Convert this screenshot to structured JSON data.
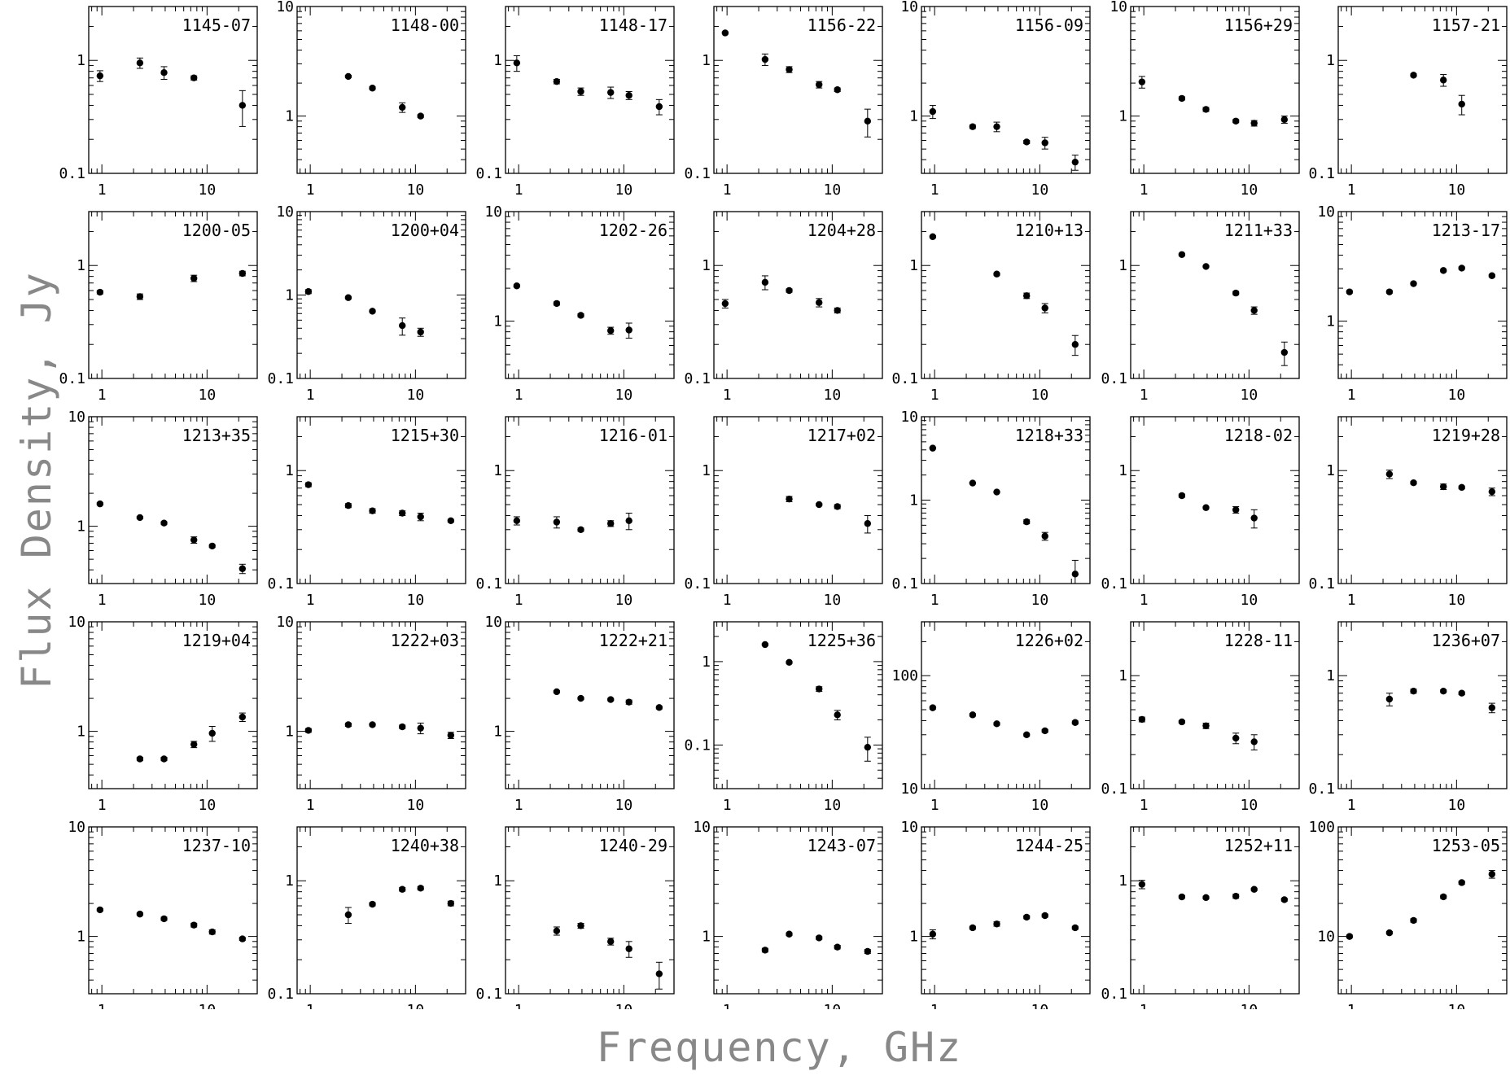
{
  "xlabel": "Frequency, GHz",
  "ylabel": "Flux Density, Jy",
  "chart_data": [
    {
      "type": "scatter",
      "title": "1145-07",
      "xlim": [
        0.75,
        30
      ],
      "ylim": [
        0.1,
        3
      ],
      "ytick_labels": [
        "0.1",
        "1"
      ],
      "xtick_labels": [
        "1",
        "10"
      ],
      "x": [
        0.96,
        2.3,
        3.9,
        7.5,
        21.7
      ],
      "y": [
        0.73,
        0.95,
        0.78,
        0.7,
        0.4
      ],
      "yerr": [
        0.08,
        0.1,
        0.1,
        0.03,
        0.14
      ]
    },
    {
      "type": "scatter",
      "title": "1148-00",
      "xlim": [
        0.75,
        30
      ],
      "ylim": [
        0.3,
        10
      ],
      "ytick_labels": [
        "1",
        "10"
      ],
      "xtick_labels": [
        "1",
        "10"
      ],
      "x": [
        2.3,
        3.9,
        7.5,
        11.2
      ],
      "y": [
        2.3,
        1.8,
        1.2,
        1.0
      ],
      "yerr": [
        0.05,
        0.05,
        0.12,
        0.03
      ]
    },
    {
      "type": "scatter",
      "title": "1148-17",
      "xlim": [
        0.75,
        30
      ],
      "ylim": [
        0.1,
        3
      ],
      "ytick_labels": [
        "0.1",
        "1"
      ],
      "xtick_labels": [
        "1",
        "10"
      ],
      "x": [
        0.96,
        2.3,
        3.9,
        7.5,
        11.2,
        21.7
      ],
      "y": [
        0.95,
        0.65,
        0.53,
        0.52,
        0.49,
        0.39
      ],
      "yerr": [
        0.15,
        0.03,
        0.04,
        0.06,
        0.04,
        0.06
      ]
    },
    {
      "type": "scatter",
      "title": "1156-22",
      "xlim": [
        0.75,
        30
      ],
      "ylim": [
        0.1,
        3
      ],
      "ytick_labels": [
        "0.1",
        "1"
      ],
      "xtick_labels": [
        "1",
        "10"
      ],
      "x": [
        0.96,
        2.3,
        3.9,
        7.5,
        11.2,
        21.7
      ],
      "y": [
        1.75,
        1.02,
        0.83,
        0.61,
        0.55,
        0.29
      ],
      "yerr": [
        0.04,
        0.12,
        0.05,
        0.04,
        0.02,
        0.08
      ]
    },
    {
      "type": "scatter",
      "title": "1156-09",
      "xlim": [
        0.75,
        30
      ],
      "ylim": [
        0.3,
        10
      ],
      "ytick_labels": [
        "1",
        "10"
      ],
      "xtick_labels": [
        "1",
        "10"
      ],
      "x": [
        0.96,
        2.3,
        3.9,
        7.5,
        11.2,
        21.7
      ],
      "y": [
        1.1,
        0.8,
        0.8,
        0.58,
        0.57,
        0.38
      ],
      "yerr": [
        0.15,
        0.03,
        0.08,
        0.02,
        0.07,
        0.06
      ]
    },
    {
      "type": "scatter",
      "title": "1156+29",
      "xlim": [
        0.75,
        30
      ],
      "ylim": [
        0.3,
        10
      ],
      "ytick_labels": [
        "1",
        "10"
      ],
      "xtick_labels": [
        "1",
        "10"
      ],
      "x": [
        0.96,
        2.3,
        3.9,
        7.5,
        11.2,
        21.7
      ],
      "y": [
        2.05,
        1.45,
        1.15,
        0.9,
        0.86,
        0.93
      ],
      "yerr": [
        0.25,
        0.05,
        0.05,
        0.03,
        0.05,
        0.07
      ]
    },
    {
      "type": "scatter",
      "title": "1157-21",
      "xlim": [
        0.75,
        30
      ],
      "ylim": [
        0.1,
        3
      ],
      "ytick_labels": [
        "0.1",
        "1"
      ],
      "xtick_labels": [
        "1",
        "10"
      ],
      "x": [
        3.9,
        7.5,
        11.2
      ],
      "y": [
        0.74,
        0.67,
        0.41
      ],
      "yerr": [
        0.02,
        0.08,
        0.08
      ]
    },
    {
      "type": "scatter",
      "title": "1200-05",
      "xlim": [
        0.75,
        30
      ],
      "ylim": [
        0.1,
        3
      ],
      "ytick_labels": [
        "0.1",
        "1"
      ],
      "xtick_labels": [
        "1",
        "10"
      ],
      "x": [
        0.96,
        2.3,
        7.5,
        21.7
      ],
      "y": [
        0.58,
        0.53,
        0.77,
        0.85
      ],
      "yerr": [
        0.02,
        0.03,
        0.05,
        0.04
      ]
    },
    {
      "type": "scatter",
      "title": "1200+04",
      "xlim": [
        0.75,
        30
      ],
      "ylim": [
        0.1,
        10
      ],
      "ytick_labels": [
        "0.1",
        "1",
        "10"
      ],
      "xtick_labels": [
        "1",
        "10"
      ],
      "x": [
        0.96,
        2.3,
        3.9,
        7.5,
        11.2
      ],
      "y": [
        1.1,
        0.93,
        0.64,
        0.43,
        0.36
      ],
      "yerr": [
        0.06,
        0.03,
        0.02,
        0.1,
        0.04
      ]
    },
    {
      "type": "scatter",
      "title": "1202-26",
      "xlim": [
        0.75,
        30
      ],
      "ylim": [
        0.3,
        10
      ],
      "ytick_labels": [
        "1",
        "10"
      ],
      "xtick_labels": [
        "1",
        "10"
      ],
      "x": [
        0.96,
        2.3,
        3.9,
        7.5,
        11.2
      ],
      "y": [
        2.1,
        1.45,
        1.13,
        0.82,
        0.83
      ],
      "yerr": [
        0.05,
        0.05,
        0.04,
        0.06,
        0.13
      ]
    },
    {
      "type": "scatter",
      "title": "1204+28",
      "xlim": [
        0.75,
        30
      ],
      "ylim": [
        0.1,
        3
      ],
      "ytick_labels": [
        "0.1",
        "1"
      ],
      "xtick_labels": [
        "1",
        "10"
      ],
      "x": [
        0.96,
        2.3,
        3.9,
        7.5,
        11.2
      ],
      "y": [
        0.46,
        0.71,
        0.6,
        0.47,
        0.4
      ],
      "yerr": [
        0.04,
        0.1,
        0.02,
        0.04,
        0.02
      ]
    },
    {
      "type": "scatter",
      "title": "1210+13",
      "xlim": [
        0.75,
        30
      ],
      "ylim": [
        0.1,
        3
      ],
      "ytick_labels": [
        "0.1",
        "1"
      ],
      "xtick_labels": [
        "1",
        "10"
      ],
      "x": [
        0.96,
        3.9,
        7.5,
        11.2,
        21.7
      ],
      "y": [
        1.8,
        0.84,
        0.54,
        0.42,
        0.2
      ],
      "yerr": [
        0.04,
        0.02,
        0.03,
        0.04,
        0.04
      ]
    },
    {
      "type": "scatter",
      "title": "1211+33",
      "xlim": [
        0.75,
        30
      ],
      "ylim": [
        0.1,
        3
      ],
      "ytick_labels": [
        "0.1",
        "1"
      ],
      "xtick_labels": [
        "1",
        "10"
      ],
      "x": [
        2.3,
        3.9,
        7.5,
        11.2,
        21.7
      ],
      "y": [
        1.25,
        0.98,
        0.57,
        0.4,
        0.17
      ],
      "yerr": [
        0.03,
        0.02,
        0.02,
        0.03,
        0.04
      ]
    },
    {
      "type": "scatter",
      "title": "1213-17",
      "xlim": [
        0.75,
        30
      ],
      "ylim": [
        0.3,
        10
      ],
      "ytick_labels": [
        "1",
        "10"
      ],
      "xtick_labels": [
        "1",
        "10"
      ],
      "x": [
        0.96,
        2.3,
        3.9,
        7.5,
        11.2,
        21.7
      ],
      "y": [
        1.85,
        1.85,
        2.2,
        2.9,
        3.05,
        2.6
      ],
      "yerr": [
        0.05,
        0.05,
        0.05,
        0.08,
        0.08,
        0.06
      ]
    },
    {
      "type": "scatter",
      "title": "1213+35",
      "xlim": [
        0.75,
        30
      ],
      "ylim": [
        0.3,
        10
      ],
      "ytick_labels": [
        "1",
        "10"
      ],
      "xtick_labels": [
        "1",
        "10"
      ],
      "x": [
        0.96,
        2.3,
        3.9,
        7.5,
        11.2,
        21.7
      ],
      "y": [
        1.6,
        1.2,
        1.07,
        0.75,
        0.66,
        0.41
      ],
      "yerr": [
        0.04,
        0.03,
        0.03,
        0.05,
        0.02,
        0.04
      ]
    },
    {
      "type": "scatter",
      "title": "1215+30",
      "xlim": [
        0.75,
        30
      ],
      "ylim": [
        0.1,
        3
      ],
      "ytick_labels": [
        "0.1",
        "1"
      ],
      "xtick_labels": [
        "1",
        "10"
      ],
      "x": [
        0.96,
        2.3,
        3.9,
        7.5,
        11.2,
        21.7
      ],
      "y": [
        0.75,
        0.49,
        0.44,
        0.42,
        0.39,
        0.36
      ],
      "yerr": [
        0.03,
        0.02,
        0.02,
        0.02,
        0.03,
        0.01
      ]
    },
    {
      "type": "scatter",
      "title": "1216-01",
      "xlim": [
        0.75,
        30
      ],
      "ylim": [
        0.1,
        3
      ],
      "ytick_labels": [
        "0.1",
        "1"
      ],
      "xtick_labels": [
        "1",
        "10"
      ],
      "x": [
        0.96,
        2.3,
        3.9,
        7.5,
        11.2
      ],
      "y": [
        0.36,
        0.35,
        0.3,
        0.34,
        0.36
      ],
      "yerr": [
        0.03,
        0.04,
        0.01,
        0.02,
        0.06
      ]
    },
    {
      "type": "scatter",
      "title": "1217+02",
      "xlim": [
        0.75,
        30
      ],
      "ylim": [
        0.1,
        3
      ],
      "ytick_labels": [
        "0.1",
        "1"
      ],
      "xtick_labels": [
        "1",
        "10"
      ],
      "x": [
        3.9,
        7.5,
        11.2,
        21.7
      ],
      "y": [
        0.56,
        0.5,
        0.48,
        0.34
      ],
      "yerr": [
        0.03,
        0.01,
        0.02,
        0.06
      ]
    },
    {
      "type": "scatter",
      "title": "1218+33",
      "xlim": [
        0.75,
        30
      ],
      "ylim": [
        0.1,
        10
      ],
      "ytick_labels": [
        "0.1",
        "1",
        "10"
      ],
      "xtick_labels": [
        "1",
        "10"
      ],
      "x": [
        0.96,
        2.3,
        3.9,
        7.5,
        11.2,
        21.7
      ],
      "y": [
        4.2,
        1.6,
        1.25,
        0.55,
        0.37,
        0.13
      ],
      "yerr": [
        0.1,
        0.04,
        0.03,
        0.03,
        0.04,
        0.06
      ]
    },
    {
      "type": "scatter",
      "title": "1218-02",
      "xlim": [
        0.75,
        30
      ],
      "ylim": [
        0.1,
        3
      ],
      "ytick_labels": [
        "0.1",
        "1"
      ],
      "xtick_labels": [
        "1",
        "10"
      ],
      "x": [
        2.3,
        3.9,
        7.5,
        11.2
      ],
      "y": [
        0.6,
        0.47,
        0.45,
        0.38
      ],
      "yerr": [
        0.02,
        0.01,
        0.03,
        0.07
      ]
    },
    {
      "type": "scatter",
      "title": "1219+28",
      "xlim": [
        0.75,
        30
      ],
      "ylim": [
        0.1,
        3
      ],
      "ytick_labels": [
        "0.1",
        "1"
      ],
      "xtick_labels": [
        "1",
        "10"
      ],
      "x": [
        2.3,
        3.9,
        7.5,
        11.2,
        21.7
      ],
      "y": [
        0.93,
        0.78,
        0.72,
        0.71,
        0.65
      ],
      "yerr": [
        0.08,
        0.02,
        0.04,
        0.02,
        0.05
      ]
    },
    {
      "type": "scatter",
      "title": "1219+04",
      "xlim": [
        0.75,
        30
      ],
      "ylim": [
        0.3,
        10
      ],
      "ytick_labels": [
        "1",
        "10"
      ],
      "xtick_labels": [
        "1",
        "10"
      ],
      "x": [
        2.3,
        3.9,
        7.5,
        11.2,
        21.7
      ],
      "y": [
        0.56,
        0.56,
        0.76,
        0.96,
        1.35
      ],
      "yerr": [
        0.02,
        0.02,
        0.05,
        0.15,
        0.12
      ]
    },
    {
      "type": "scatter",
      "title": "1222+03",
      "xlim": [
        0.75,
        30
      ],
      "ylim": [
        0.3,
        10
      ],
      "ytick_labels": [
        "1",
        "10"
      ],
      "xtick_labels": [
        "1",
        "10"
      ],
      "x": [
        0.96,
        2.3,
        3.9,
        7.5,
        11.2,
        21.7
      ],
      "y": [
        1.02,
        1.15,
        1.15,
        1.1,
        1.07,
        0.92
      ],
      "yerr": [
        0.04,
        0.04,
        0.03,
        0.04,
        0.12,
        0.06
      ]
    },
    {
      "type": "scatter",
      "title": "1222+21",
      "xlim": [
        0.75,
        30
      ],
      "ylim": [
        0.3,
        10
      ],
      "ytick_labels": [
        "1",
        "10"
      ],
      "xtick_labels": [
        "1",
        "10"
      ],
      "x": [
        2.3,
        3.9,
        7.5,
        11.2,
        21.7
      ],
      "y": [
        2.3,
        2.0,
        1.95,
        1.85,
        1.65
      ],
      "yerr": [
        0.05,
        0.05,
        0.05,
        0.08,
        0.05
      ]
    },
    {
      "type": "scatter",
      "title": "1225+36",
      "xlim": [
        0.75,
        30
      ],
      "ylim": [
        0.03,
        3
      ],
      "ytick_labels": [
        "0.1",
        "1"
      ],
      "xtick_labels": [
        "1",
        "10"
      ],
      "x": [
        2.3,
        3.9,
        7.5,
        11.2,
        21.7
      ],
      "y": [
        1.6,
        0.98,
        0.47,
        0.23,
        0.094
      ],
      "yerr": [
        0.04,
        0.03,
        0.03,
        0.03,
        0.03
      ]
    },
    {
      "type": "scatter",
      "title": "1226+02",
      "xlim": [
        0.75,
        30
      ],
      "ylim": [
        10,
        300
      ],
      "ytick_labels": [
        "10",
        "100"
      ],
      "xtick_labels": [
        "1",
        "10"
      ],
      "x": [
        0.96,
        2.3,
        3.9,
        7.5,
        11.2,
        21.7
      ],
      "y": [
        52,
        45,
        37.5,
        30,
        32.5,
        38.5
      ],
      "yerr": [
        1.5,
        1.2,
        1,
        0.8,
        1,
        1.2
      ]
    },
    {
      "type": "scatter",
      "title": "1228-11",
      "xlim": [
        0.75,
        30
      ],
      "ylim": [
        0.1,
        3
      ],
      "ytick_labels": [
        "0.1",
        "1"
      ],
      "xtick_labels": [
        "1",
        "10"
      ],
      "x": [
        0.96,
        2.3,
        3.9,
        7.5,
        11.2
      ],
      "y": [
        0.41,
        0.39,
        0.36,
        0.28,
        0.26
      ],
      "yerr": [
        0.02,
        0.01,
        0.02,
        0.03,
        0.04
      ]
    },
    {
      "type": "scatter",
      "title": "1236+07",
      "xlim": [
        0.75,
        30
      ],
      "ylim": [
        0.1,
        3
      ],
      "ytick_labels": [
        "0.1",
        "1"
      ],
      "xtick_labels": [
        "1",
        "10"
      ],
      "x": [
        2.3,
        3.9,
        7.5,
        11.2,
        21.7
      ],
      "y": [
        0.62,
        0.73,
        0.73,
        0.7,
        0.52
      ],
      "yerr": [
        0.08,
        0.03,
        0.02,
        0.02,
        0.05
      ]
    },
    {
      "type": "scatter",
      "title": "1237-10",
      "xlim": [
        0.75,
        30
      ],
      "ylim": [
        0.3,
        10
      ],
      "ytick_labels": [
        "1",
        "10"
      ],
      "xtick_labels": [
        "1",
        "10"
      ],
      "x": [
        0.96,
        2.3,
        3.9,
        7.5,
        11.2,
        21.7
      ],
      "y": [
        1.75,
        1.6,
        1.45,
        1.27,
        1.1,
        0.95
      ],
      "yerr": [
        0.04,
        0.04,
        0.05,
        0.05,
        0.05,
        0.03
      ]
    },
    {
      "type": "scatter",
      "title": "1240+38",
      "xlim": [
        0.75,
        30
      ],
      "ylim": [
        0.1,
        3
      ],
      "ytick_labels": [
        "0.1",
        "1"
      ],
      "xtick_labels": [
        "1",
        "10"
      ],
      "x": [
        2.3,
        3.9,
        7.5,
        11.2,
        21.7
      ],
      "y": [
        0.5,
        0.62,
        0.84,
        0.86,
        0.63
      ],
      "yerr": [
        0.08,
        0.02,
        0.03,
        0.03,
        0.03
      ]
    },
    {
      "type": "scatter",
      "title": "1240-29",
      "xlim": [
        0.75,
        30
      ],
      "ylim": [
        0.1,
        3
      ],
      "ytick_labels": [
        "0.1",
        "1"
      ],
      "xtick_labels": [
        "1",
        "10"
      ],
      "x": [
        2.3,
        3.9,
        7.5,
        11.2,
        21.7
      ],
      "y": [
        0.36,
        0.4,
        0.29,
        0.25,
        0.15
      ],
      "yerr": [
        0.03,
        0.02,
        0.02,
        0.04,
        0.04
      ]
    },
    {
      "type": "scatter",
      "title": "1243-07",
      "xlim": [
        0.75,
        30
      ],
      "ylim": [
        0.3,
        10
      ],
      "ytick_labels": [
        "1",
        "10"
      ],
      "xtick_labels": [
        "1",
        "10"
      ],
      "x": [
        2.3,
        3.9,
        7.5,
        11.2,
        21.7
      ],
      "y": [
        0.75,
        1.05,
        0.97,
        0.8,
        0.73
      ],
      "yerr": [
        0.03,
        0.03,
        0.03,
        0.03,
        0.03
      ]
    },
    {
      "type": "scatter",
      "title": "1244-25",
      "xlim": [
        0.75,
        30
      ],
      "ylim": [
        0.3,
        10
      ],
      "ytick_labels": [
        "1",
        "10"
      ],
      "xtick_labels": [
        "1",
        "10"
      ],
      "x": [
        0.96,
        2.3,
        3.9,
        7.5,
        11.2,
        21.7
      ],
      "y": [
        1.05,
        1.2,
        1.3,
        1.5,
        1.55,
        1.2
      ],
      "yerr": [
        0.1,
        0.04,
        0.06,
        0.05,
        0.05,
        0.04
      ]
    },
    {
      "type": "scatter",
      "title": "1252+11",
      "xlim": [
        0.75,
        30
      ],
      "ylim": [
        0.1,
        3
      ],
      "ytick_labels": [
        "0.1",
        "1"
      ],
      "xtick_labels": [
        "1",
        "10"
      ],
      "x": [
        0.96,
        2.3,
        3.9,
        7.5,
        11.2,
        21.7
      ],
      "y": [
        0.93,
        0.72,
        0.71,
        0.73,
        0.84,
        0.68
      ],
      "yerr": [
        0.08,
        0.02,
        0.02,
        0.03,
        0.02,
        0.02
      ]
    },
    {
      "type": "scatter",
      "title": "1253-05",
      "xlim": [
        0.75,
        30
      ],
      "ylim": [
        3,
        100
      ],
      "ytick_labels": [
        "10",
        "100"
      ],
      "xtick_labels": [
        "1",
        "10"
      ],
      "x": [
        0.96,
        2.3,
        3.9,
        7.5,
        11.2,
        21.7
      ],
      "y": [
        10,
        10.8,
        14,
        23,
        31,
        37
      ],
      "yerr": [
        0.3,
        0.3,
        0.5,
        0.8,
        1,
        3
      ]
    }
  ]
}
